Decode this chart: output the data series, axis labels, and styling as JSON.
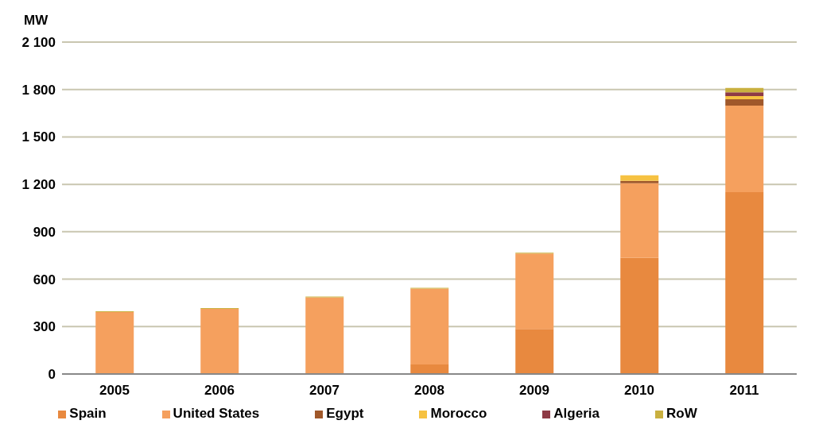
{
  "chart_data": {
    "type": "bar",
    "stacked": true,
    "ylabel": "MW",
    "categories": [
      "2005",
      "2006",
      "2007",
      "2008",
      "2009",
      "2010",
      "2011"
    ],
    "series": [
      {
        "name": "Spain",
        "color": "#e8893f",
        "values": [
          0,
          0,
          0,
          60,
          285,
          735,
          1150
        ]
      },
      {
        "name": "United States",
        "color": "#f5a05e",
        "values": [
          392,
          412,
          485,
          480,
          478,
          472,
          548
        ]
      },
      {
        "name": "Egypt",
        "color": "#a0582a",
        "values": [
          0,
          0,
          0,
          0,
          0,
          15,
          40
        ]
      },
      {
        "name": "Morocco",
        "color": "#f6c242",
        "values": [
          0,
          0,
          0,
          0,
          0,
          35,
          20
        ]
      },
      {
        "name": "Algeria",
        "color": "#8e3a45",
        "values": [
          0,
          0,
          0,
          0,
          0,
          0,
          24
        ]
      },
      {
        "name": "RoW",
        "color": "#c9b03f",
        "values": [
          5,
          5,
          5,
          5,
          5,
          0,
          28
        ]
      }
    ],
    "ylim": [
      0,
      2100
    ],
    "yticks": [
      0,
      300,
      600,
      900,
      {
        "value": 1200,
        "label": "1 200"
      },
      {
        "value": 1500,
        "label": "1 500"
      },
      {
        "value": 1800,
        "label": "1 800"
      },
      {
        "value": 2100,
        "label": "2 100"
      }
    ],
    "grid": "y",
    "legend": "bottom"
  }
}
